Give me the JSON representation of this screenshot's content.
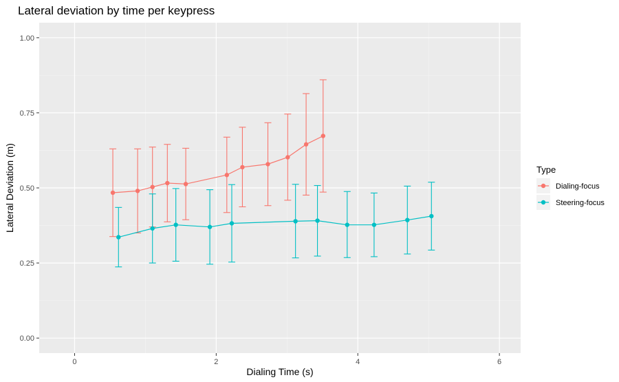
{
  "chart_data": {
    "type": "line",
    "title": "Lateral deviation by time per keypress",
    "xlabel": "Dialing Time (s)",
    "ylabel": "Lateral Deviation (m)",
    "xlim": [
      -0.5,
      6.3
    ],
    "ylim": [
      -0.05,
      1.05
    ],
    "x_ticks": [
      0,
      2,
      4,
      6
    ],
    "x_tick_labels": [
      "0",
      "2",
      "4",
      "6"
    ],
    "y_ticks": [
      0,
      0.25,
      0.5,
      0.75,
      1.0
    ],
    "y_tick_labels": [
      "0.00",
      "0.25",
      "0.50",
      "0.75",
      "1.00"
    ],
    "grid": true,
    "legend": {
      "title": "Type",
      "placement": "right"
    },
    "series": [
      {
        "name": "Dialing-focus",
        "color": "#F8766D",
        "points": [
          {
            "x": 0.54,
            "y": 0.484,
            "ymin": 0.338,
            "ymax": 0.63
          },
          {
            "x": 0.89,
            "y": 0.49,
            "ymin": 0.35,
            "ymax": 0.63
          },
          {
            "x": 1.1,
            "y": 0.503,
            "ymin": 0.37,
            "ymax": 0.636
          },
          {
            "x": 1.31,
            "y": 0.516,
            "ymin": 0.387,
            "ymax": 0.645
          },
          {
            "x": 1.57,
            "y": 0.513,
            "ymin": 0.394,
            "ymax": 0.632
          },
          {
            "x": 2.15,
            "y": 0.543,
            "ymin": 0.418,
            "ymax": 0.669
          },
          {
            "x": 2.37,
            "y": 0.569,
            "ymin": 0.437,
            "ymax": 0.702
          },
          {
            "x": 2.73,
            "y": 0.579,
            "ymin": 0.441,
            "ymax": 0.717
          },
          {
            "x": 3.01,
            "y": 0.602,
            "ymin": 0.459,
            "ymax": 0.746
          },
          {
            "x": 3.27,
            "y": 0.645,
            "ymin": 0.476,
            "ymax": 0.814
          },
          {
            "x": 3.51,
            "y": 0.673,
            "ymin": 0.486,
            "ymax": 0.86
          }
        ]
      },
      {
        "name": "Steering-focus",
        "color": "#00BFC4",
        "points": [
          {
            "x": 0.62,
            "y": 0.336,
            "ymin": 0.237,
            "ymax": 0.435
          },
          {
            "x": 1.1,
            "y": 0.365,
            "ymin": 0.25,
            "ymax": 0.48
          },
          {
            "x": 1.43,
            "y": 0.377,
            "ymin": 0.256,
            "ymax": 0.498
          },
          {
            "x": 1.91,
            "y": 0.37,
            "ymin": 0.246,
            "ymax": 0.494
          },
          {
            "x": 2.22,
            "y": 0.382,
            "ymin": 0.253,
            "ymax": 0.511
          },
          {
            "x": 3.12,
            "y": 0.389,
            "ymin": 0.267,
            "ymax": 0.512
          },
          {
            "x": 3.43,
            "y": 0.391,
            "ymin": 0.273,
            "ymax": 0.508
          },
          {
            "x": 3.85,
            "y": 0.377,
            "ymin": 0.268,
            "ymax": 0.488
          },
          {
            "x": 4.23,
            "y": 0.377,
            "ymin": 0.271,
            "ymax": 0.483
          },
          {
            "x": 4.7,
            "y": 0.393,
            "ymin": 0.28,
            "ymax": 0.506
          },
          {
            "x": 5.04,
            "y": 0.406,
            "ymin": 0.293,
            "ymax": 0.519
          }
        ]
      }
    ]
  }
}
